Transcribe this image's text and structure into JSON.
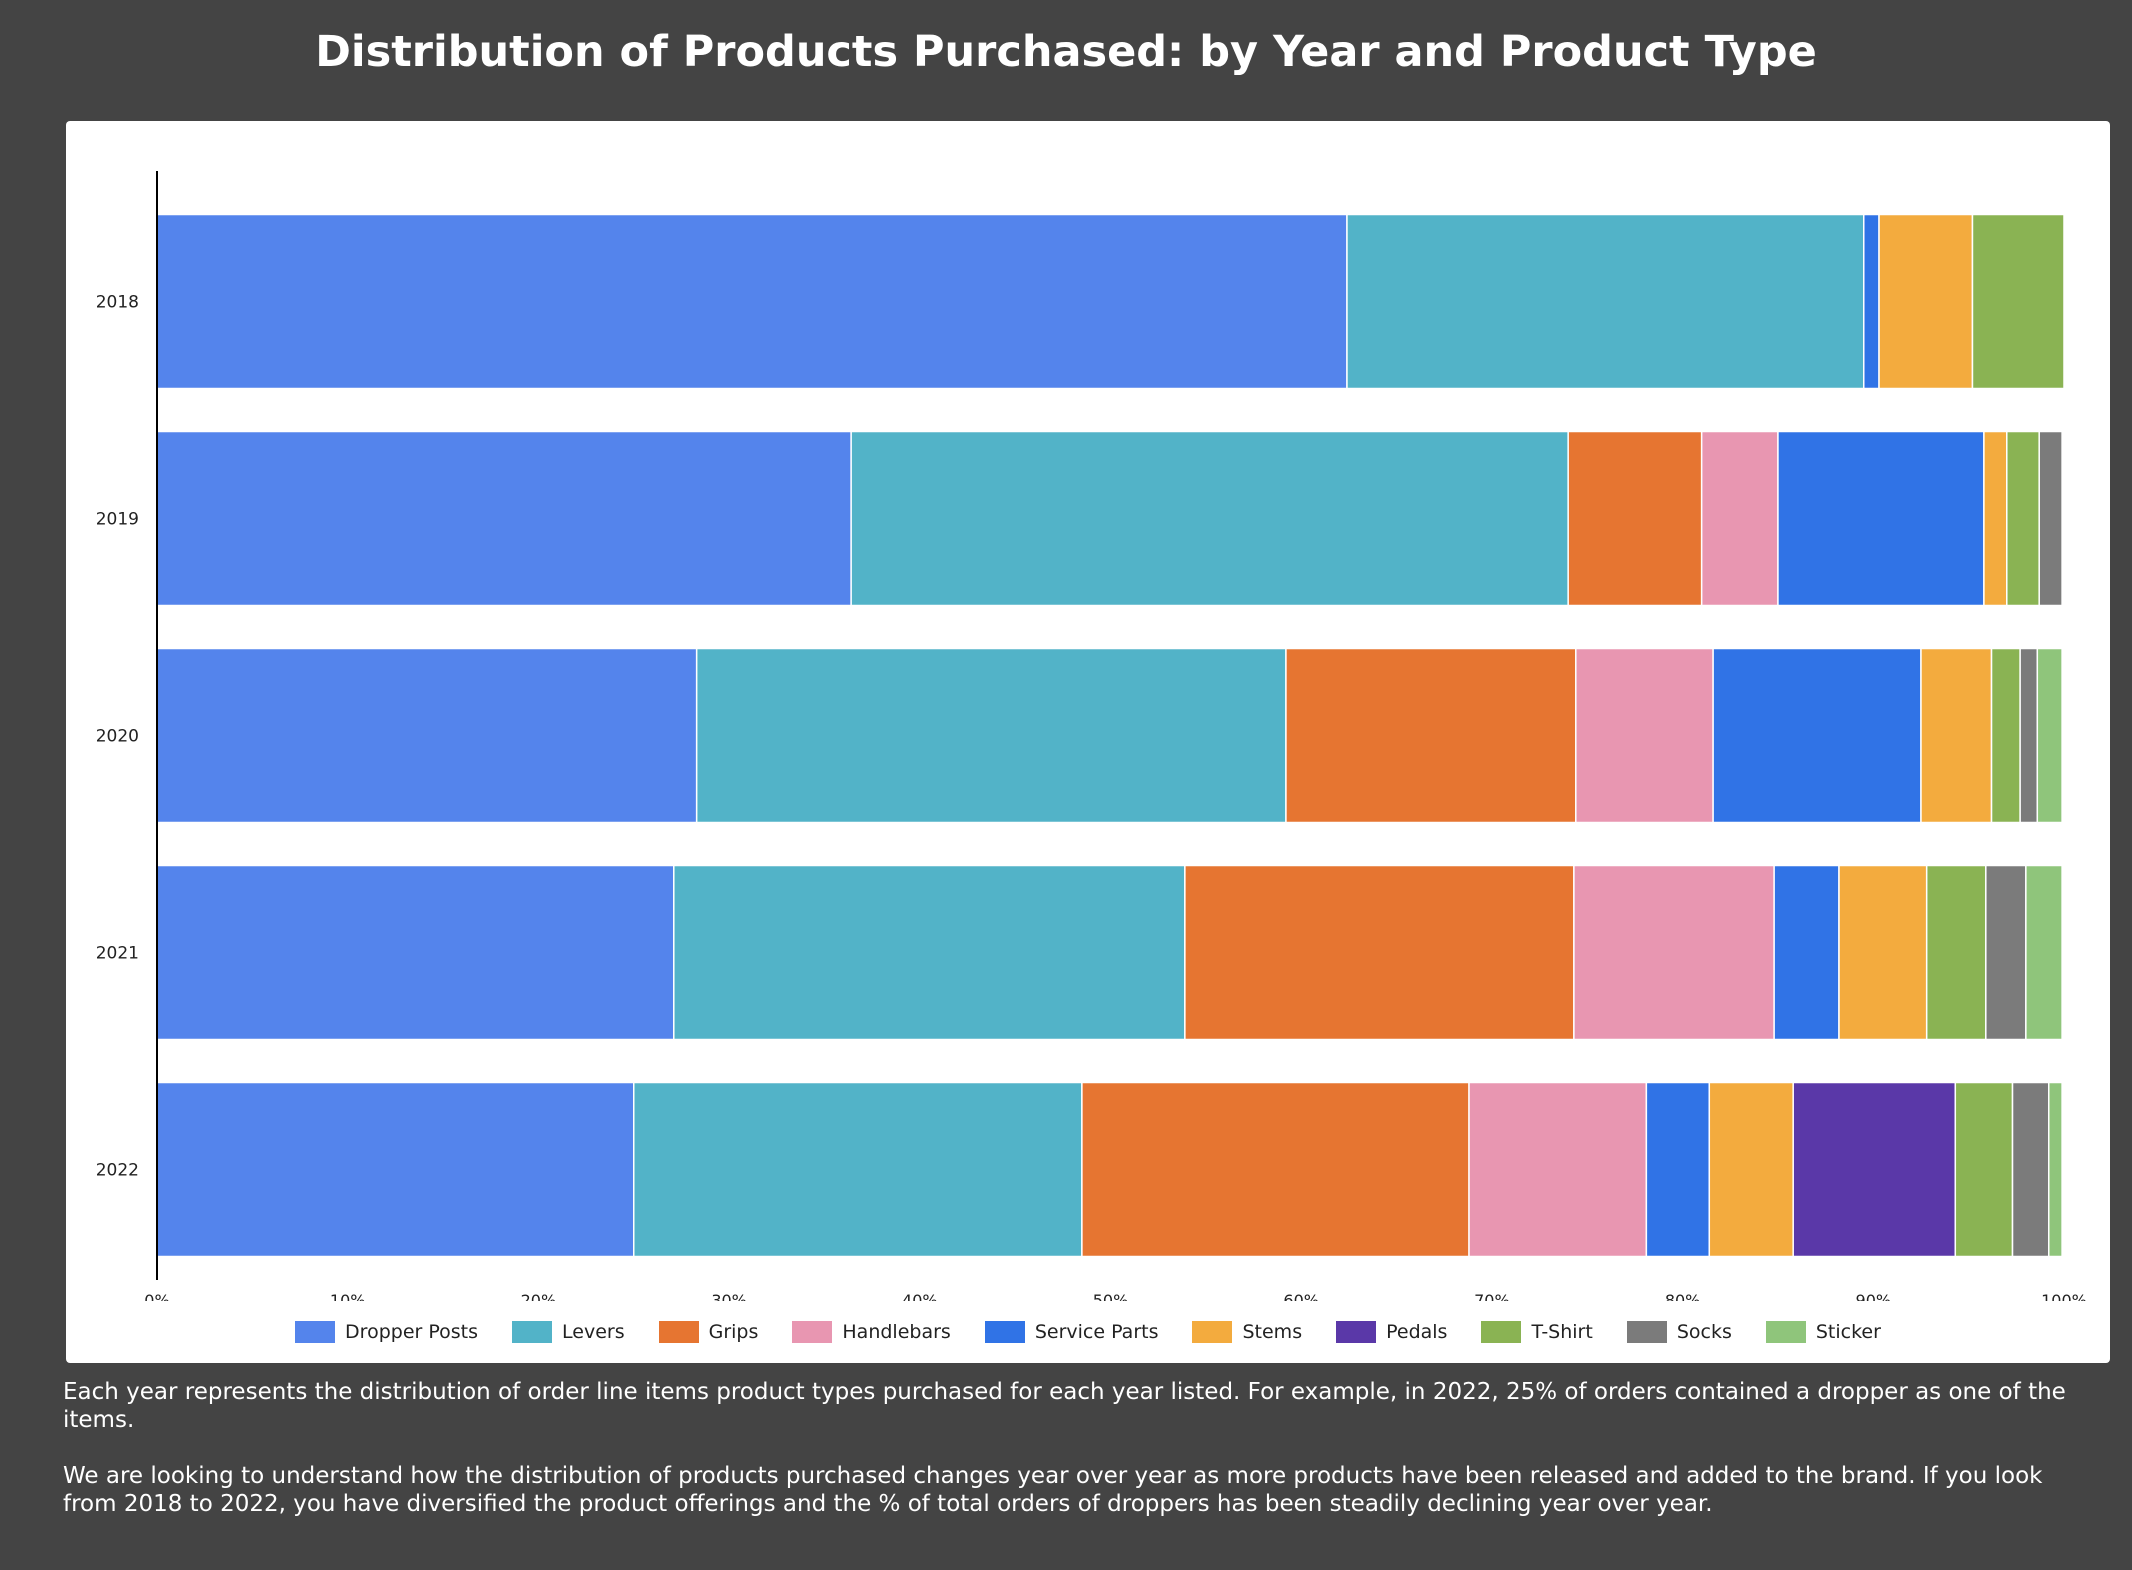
{
  "title": "Distribution of Products Purchased: by Year and Product Type",
  "chart_data": {
    "type": "bar",
    "orientation": "horizontal",
    "stacked": true,
    "categories": [
      "2018",
      "2019",
      "2020",
      "2021",
      "2022"
    ],
    "xlim": [
      0,
      100
    ],
    "x_ticks": [
      "0%",
      "10%",
      "20%",
      "30%",
      "40%",
      "50%",
      "60%",
      "70%",
      "80%",
      "90%",
      "100%"
    ],
    "legend_position": "bottom",
    "series": [
      {
        "name": "Dropper Posts",
        "color": "#5484ec",
        "values": [
          62.4,
          36.4,
          28.3,
          27.1,
          25.0
        ]
      },
      {
        "name": "Levers",
        "color": "#52b3c8",
        "values": [
          27.1,
          37.6,
          30.9,
          26.8,
          23.5
        ]
      },
      {
        "name": "Grips",
        "color": "#e67531",
        "values": [
          0,
          7.0,
          15.2,
          20.4,
          20.3
        ]
      },
      {
        "name": "Handlebars",
        "color": "#e896b1",
        "values": [
          0,
          4.0,
          7.2,
          10.5,
          9.3
        ]
      },
      {
        "name": "Service Parts",
        "color": "#3073e6",
        "values": [
          0.8,
          10.8,
          10.9,
          3.4,
          3.3
        ]
      },
      {
        "name": "Stems",
        "color": "#f3ab3e",
        "values": [
          4.9,
          1.2,
          3.7,
          4.6,
          4.4
        ]
      },
      {
        "name": "Pedals",
        "color": "#5a38a8",
        "values": [
          0,
          0,
          0,
          0,
          8.5
        ]
      },
      {
        "name": "T-Shirt",
        "color": "#8ab353",
        "values": [
          4.8,
          1.7,
          1.5,
          3.1,
          3.0
        ]
      },
      {
        "name": "Socks",
        "color": "#7b7b7b",
        "values": [
          0,
          1.2,
          0.9,
          2.1,
          1.9
        ]
      },
      {
        "name": "Sticker",
        "color": "#8fc57b",
        "values": [
          0,
          0,
          1.3,
          1.9,
          0.7
        ]
      }
    ]
  },
  "notes": [
    "Each year represents the distribution of order line items product types purchased for each year listed. For example, in 2022, 25% of orders contained a dropper as one of the items.",
    "We are looking to understand how the distribution of products purchased changes year over year as more products have been released and added to the brand. If you look from 2018 to 2022, you have diversified the product offerings and the % of total orders of droppers has been steadily declining year over year."
  ]
}
